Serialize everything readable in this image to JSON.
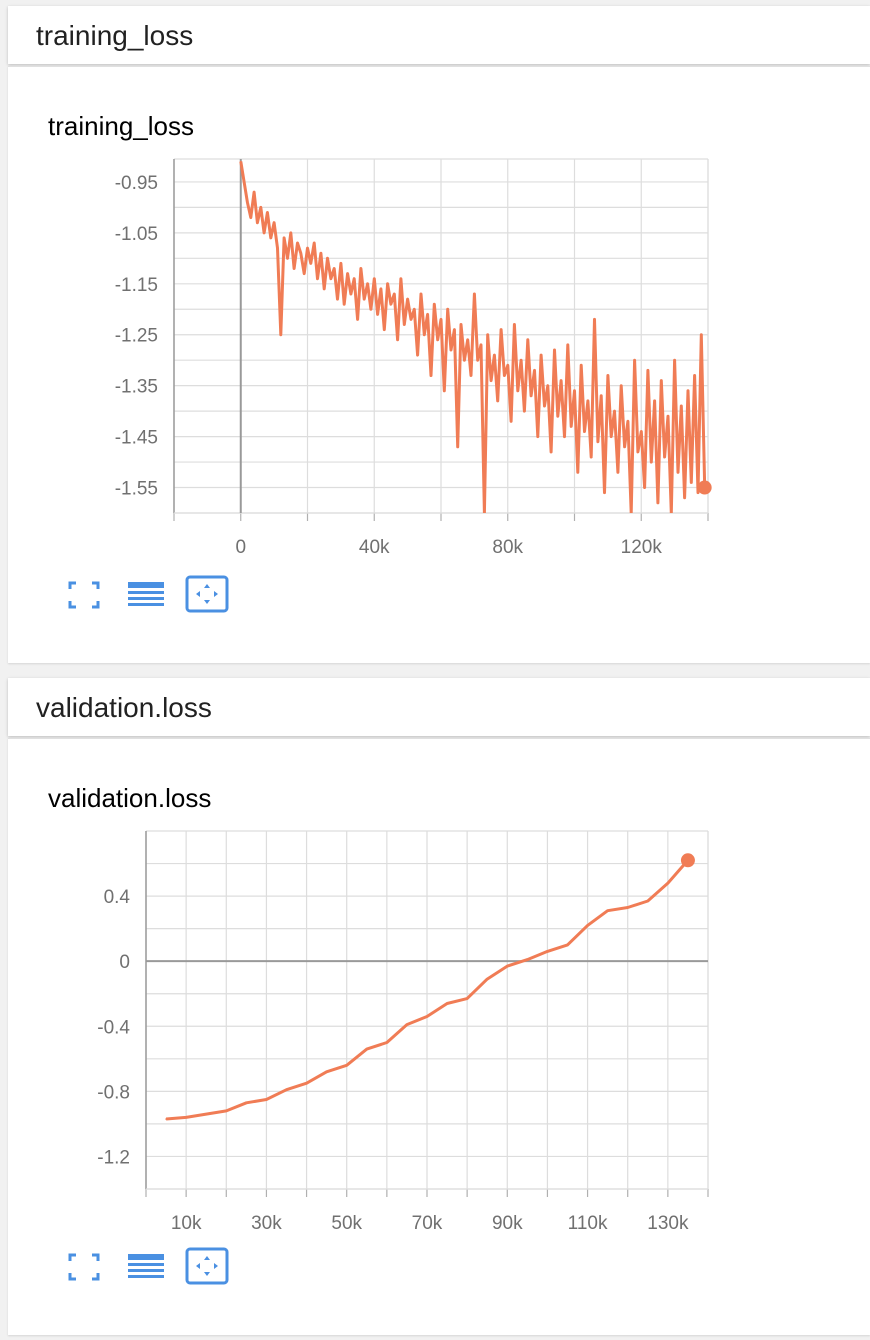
{
  "cards": [
    {
      "header": "training_loss",
      "chart_title": "training_loss",
      "icons": [
        "fullscreen-icon",
        "data-table-icon",
        "fit-domain-icon"
      ]
    },
    {
      "header": "validation.loss",
      "chart_title": "validation.loss",
      "icons": [
        "fullscreen-icon",
        "data-table-icon",
        "fit-domain-icon"
      ]
    }
  ],
  "colors": {
    "series": "#f07c55",
    "grid": "#dddddd",
    "zero_axis": "#999999",
    "icon": "#4a90e2"
  },
  "chart_data": [
    {
      "type": "line",
      "title": "training_loss",
      "series": [
        {
          "values": [
            [
              0,
              -0.91
            ],
            [
              1000,
              -0.95
            ],
            [
              2000,
              -0.99
            ],
            [
              3000,
              -1.02
            ],
            [
              4000,
              -0.97
            ],
            [
              5000,
              -1.03
            ],
            [
              6000,
              -1.0
            ],
            [
              7000,
              -1.05
            ],
            [
              8000,
              -1.01
            ],
            [
              9000,
              -1.06
            ],
            [
              10000,
              -1.03
            ],
            [
              11000,
              -1.08
            ],
            [
              12000,
              -1.25
            ],
            [
              13000,
              -1.06
            ],
            [
              14000,
              -1.1
            ],
            [
              15000,
              -1.05
            ],
            [
              16000,
              -1.12
            ],
            [
              17000,
              -1.07
            ],
            [
              18000,
              -1.09
            ],
            [
              19000,
              -1.13
            ],
            [
              20000,
              -1.08
            ],
            [
              21000,
              -1.11
            ],
            [
              22000,
              -1.07
            ],
            [
              23000,
              -1.14
            ],
            [
              24000,
              -1.09
            ],
            [
              25000,
              -1.16
            ],
            [
              26000,
              -1.1
            ],
            [
              27000,
              -1.14
            ],
            [
              28000,
              -1.12
            ],
            [
              29000,
              -1.18
            ],
            [
              30000,
              -1.11
            ],
            [
              31000,
              -1.19
            ],
            [
              32000,
              -1.13
            ],
            [
              33000,
              -1.17
            ],
            [
              34000,
              -1.14
            ],
            [
              35000,
              -1.22
            ],
            [
              36000,
              -1.12
            ],
            [
              37000,
              -1.18
            ],
            [
              38000,
              -1.15
            ],
            [
              39000,
              -1.2
            ],
            [
              40000,
              -1.14
            ],
            [
              41000,
              -1.21
            ],
            [
              42000,
              -1.16
            ],
            [
              43000,
              -1.24
            ],
            [
              44000,
              -1.15
            ],
            [
              45000,
              -1.19
            ],
            [
              46000,
              -1.17
            ],
            [
              47000,
              -1.26
            ],
            [
              48000,
              -1.14
            ],
            [
              49000,
              -1.23
            ],
            [
              50000,
              -1.18
            ],
            [
              51000,
              -1.22
            ],
            [
              52000,
              -1.2
            ],
            [
              53000,
              -1.29
            ],
            [
              54000,
              -1.17
            ],
            [
              55000,
              -1.25
            ],
            [
              56000,
              -1.21
            ],
            [
              57000,
              -1.33
            ],
            [
              58000,
              -1.19
            ],
            [
              59000,
              -1.26
            ],
            [
              60000,
              -1.22
            ],
            [
              61000,
              -1.36
            ],
            [
              62000,
              -1.2
            ],
            [
              63000,
              -1.28
            ],
            [
              64000,
              -1.24
            ],
            [
              65000,
              -1.47
            ],
            [
              66000,
              -1.23
            ],
            [
              67000,
              -1.3
            ],
            [
              68000,
              -1.26
            ],
            [
              69000,
              -1.33
            ],
            [
              70000,
              -1.17
            ],
            [
              71000,
              -1.3
            ],
            [
              72000,
              -1.27
            ],
            [
              73000,
              -1.6
            ],
            [
              74000,
              -1.25
            ],
            [
              75000,
              -1.34
            ],
            [
              76000,
              -1.29
            ],
            [
              77000,
              -1.38
            ],
            [
              78000,
              -1.24
            ],
            [
              79000,
              -1.33
            ],
            [
              80000,
              -1.31
            ],
            [
              81000,
              -1.42
            ],
            [
              82000,
              -1.23
            ],
            [
              83000,
              -1.36
            ],
            [
              84000,
              -1.3
            ],
            [
              85000,
              -1.4
            ],
            [
              86000,
              -1.26
            ],
            [
              87000,
              -1.37
            ],
            [
              88000,
              -1.32
            ],
            [
              89000,
              -1.45
            ],
            [
              90000,
              -1.29
            ],
            [
              91000,
              -1.39
            ],
            [
              92000,
              -1.35
            ],
            [
              93000,
              -1.48
            ],
            [
              94000,
              -1.28
            ],
            [
              95000,
              -1.41
            ],
            [
              96000,
              -1.34
            ],
            [
              97000,
              -1.45
            ],
            [
              98000,
              -1.27
            ],
            [
              99000,
              -1.43
            ],
            [
              100000,
              -1.36
            ],
            [
              101000,
              -1.52
            ],
            [
              102000,
              -1.31
            ],
            [
              103000,
              -1.44
            ],
            [
              104000,
              -1.38
            ],
            [
              105000,
              -1.49
            ],
            [
              106000,
              -1.22
            ],
            [
              107000,
              -1.46
            ],
            [
              108000,
              -1.37
            ],
            [
              109000,
              -1.56
            ],
            [
              110000,
              -1.33
            ],
            [
              111000,
              -1.45
            ],
            [
              112000,
              -1.4
            ],
            [
              113000,
              -1.52
            ],
            [
              114000,
              -1.35
            ],
            [
              115000,
              -1.47
            ],
            [
              116000,
              -1.42
            ],
            [
              117000,
              -1.6
            ],
            [
              118000,
              -1.3
            ],
            [
              119000,
              -1.48
            ],
            [
              120000,
              -1.44
            ],
            [
              121000,
              -1.55
            ],
            [
              122000,
              -1.32
            ],
            [
              123000,
              -1.5
            ],
            [
              124000,
              -1.38
            ],
            [
              125000,
              -1.58
            ],
            [
              126000,
              -1.34
            ],
            [
              127000,
              -1.49
            ],
            [
              128000,
              -1.41
            ],
            [
              129000,
              -1.6
            ],
            [
              130000,
              -1.3
            ],
            [
              131000,
              -1.52
            ],
            [
              132000,
              -1.39
            ],
            [
              133000,
              -1.57
            ],
            [
              134000,
              -1.36
            ],
            [
              135000,
              -1.54
            ],
            [
              136000,
              -1.33
            ],
            [
              137000,
              -1.56
            ],
            [
              138000,
              -1.25
            ],
            [
              139000,
              -1.55
            ]
          ]
        }
      ],
      "x_ticks": [
        0,
        40000,
        80000,
        120000
      ],
      "x_tick_labels": [
        "0",
        "40k",
        "80k",
        "120k"
      ],
      "y_ticks": [
        -0.95,
        -1.05,
        -1.15,
        -1.25,
        -1.35,
        -1.45,
        -1.55
      ],
      "y_tick_labels": [
        "-0.95",
        "-1.05",
        "-1.15",
        "-1.25",
        "-1.35",
        "-1.45",
        "-1.55"
      ],
      "xlim": [
        -20000,
        140000
      ],
      "ylim": [
        -1.6,
        -0.905
      ],
      "grid": true
    },
    {
      "type": "line",
      "title": "validation.loss",
      "series": [
        {
          "values": [
            [
              5000,
              -0.97
            ],
            [
              10000,
              -0.96
            ],
            [
              15000,
              -0.94
            ],
            [
              20000,
              -0.92
            ],
            [
              25000,
              -0.87
            ],
            [
              30000,
              -0.85
            ],
            [
              35000,
              -0.79
            ],
            [
              40000,
              -0.75
            ],
            [
              45000,
              -0.68
            ],
            [
              50000,
              -0.64
            ],
            [
              55000,
              -0.54
            ],
            [
              60000,
              -0.5
            ],
            [
              65000,
              -0.39
            ],
            [
              70000,
              -0.34
            ],
            [
              75000,
              -0.26
            ],
            [
              80000,
              -0.23
            ],
            [
              85000,
              -0.11
            ],
            [
              90000,
              -0.03
            ],
            [
              95000,
              0.01
            ],
            [
              100000,
              0.06
            ],
            [
              105000,
              0.1
            ],
            [
              110000,
              0.22
            ],
            [
              115000,
              0.31
            ],
            [
              120000,
              0.33
            ],
            [
              125000,
              0.37
            ],
            [
              130000,
              0.48
            ],
            [
              135000,
              0.62
            ]
          ]
        }
      ],
      "x_ticks": [
        10000,
        30000,
        50000,
        70000,
        90000,
        110000,
        130000
      ],
      "x_tick_labels": [
        "10k",
        "30k",
        "50k",
        "70k",
        "90k",
        "110k",
        "130k"
      ],
      "y_ticks": [
        0.4,
        0,
        -0.4,
        -0.8,
        -1.2
      ],
      "y_tick_labels": [
        "0.4",
        "0",
        "-0.4",
        "-0.8",
        "-1.2"
      ],
      "xlim": [
        0,
        140000
      ],
      "ylim": [
        -1.4,
        0.8
      ],
      "grid": true
    }
  ]
}
